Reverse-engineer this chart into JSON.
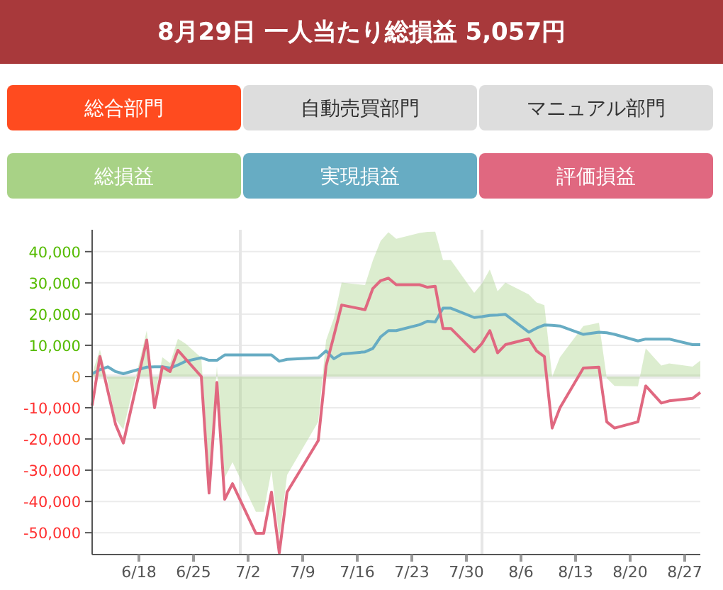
{
  "chart_data": {
    "type": "line",
    "title": "8月29日 一人当たり総損益 5,057円",
    "annotations": [
      "総合部門",
      "自動売買部門",
      "マニュアル部門"
    ],
    "legend": "top",
    "grid": "y",
    "line_style": "solid",
    "marker": "none",
    "x": [
      "--06-12",
      "--06-13",
      "--06-14",
      "--06-15",
      "--06-16",
      "--06-19",
      "--06-20",
      "--06-21",
      "--06-22",
      "--06-23",
      "--06-24",
      "--06-26",
      "--06-27",
      "--06-28",
      "--06-29",
      "--06-30",
      "--07-03",
      "--07-04",
      "--07-05",
      "--07-06",
      "--07-07",
      "--07-11",
      "--07-12",
      "--07-13",
      "--07-14",
      "--07-17",
      "--07-18",
      "--07-19",
      "--07-20",
      "--07-21",
      "--07-24",
      "--07-25",
      "--07-26",
      "--07-27",
      "--07-28",
      "--07-31",
      "--08-01",
      "--08-02",
      "--08-03",
      "--08-04",
      "--08-07",
      "--08-08",
      "--08-09",
      "--08-10",
      "--08-11",
      "--08-14",
      "--08-16",
      "--08-17",
      "--08-18",
      "--08-21",
      "--08-22",
      "--08-24",
      "--08-25",
      "--08-28",
      "--08-29"
    ],
    "series": [
      {
        "name": "総損益",
        "type": "area",
        "color": "#a8d286",
        "values": [
          1000,
          8600,
          -1400,
          -13700,
          -17000,
          14700,
          -6900,
          6200,
          4300,
          12100,
          10500,
          6000,
          -32100,
          3300,
          -32400,
          -27400,
          -43300,
          -43300,
          -30100,
          -51600,
          -31500,
          -14500,
          11600,
          18700,
          30100,
          29300,
          37200,
          43400,
          46200,
          44100,
          46000,
          46300,
          46400,
          37300,
          37300,
          26800,
          29800,
          34300,
          27300,
          30100,
          26300,
          23700,
          22900,
          -100,
          6200,
          16200,
          17200,
          -500,
          -3000,
          -3100,
          9000,
          3500,
          4200,
          3200,
          5100
        ]
      },
      {
        "name": "実現損益",
        "type": "line",
        "color": "#67acc3",
        "values": [
          900,
          2200,
          3100,
          1600,
          900,
          3000,
          3100,
          3100,
          2700,
          3700,
          4900,
          6000,
          5200,
          5200,
          6900,
          6900,
          6900,
          6900,
          6900,
          4900,
          5500,
          6000,
          8200,
          5700,
          7200,
          7900,
          9000,
          12700,
          14700,
          14700,
          16600,
          17700,
          17500,
          21900,
          21900,
          18900,
          19200,
          19600,
          19700,
          19900,
          14200,
          15500,
          16500,
          16400,
          16200,
          13500,
          14200,
          14000,
          13500,
          11400,
          12000,
          12000,
          12000,
          10200,
          10200
        ]
      },
      {
        "name": "評価損益",
        "type": "line",
        "color": "#e06880",
        "values": [
          -9300,
          6400,
          -4500,
          -15300,
          -21300,
          11700,
          -10000,
          3100,
          1600,
          8400,
          5600,
          0,
          -37300,
          -1900,
          -39300,
          -34300,
          -50200,
          -50200,
          -37000,
          -56500,
          -37000,
          -20500,
          3400,
          13000,
          22900,
          21400,
          28200,
          30700,
          31500,
          29400,
          29400,
          28600,
          28900,
          15400,
          15400,
          7900,
          10600,
          14700,
          7600,
          10200,
          12100,
          8200,
          6400,
          -16500,
          -10000,
          2700,
          3000,
          -14500,
          -16500,
          -14500,
          -3000,
          -8500,
          -7800,
          -7000,
          -5100
        ]
      }
    ],
    "xlim": [
      "--06-12",
      "--08-29"
    ],
    "xticks": [
      {
        "value": "--06-18",
        "label": "6/18"
      },
      {
        "value": "--06-25",
        "label": "6/25"
      },
      {
        "value": "--07-02",
        "label": "7/2"
      },
      {
        "value": "--07-09",
        "label": "7/9"
      },
      {
        "value": "--07-16",
        "label": "7/16"
      },
      {
        "value": "--07-23",
        "label": "7/23"
      },
      {
        "value": "--07-30",
        "label": "7/30"
      },
      {
        "value": "--08-06",
        "label": "8/6"
      },
      {
        "value": "--08-13",
        "label": "8/13"
      },
      {
        "value": "--08-20",
        "label": "8/20"
      },
      {
        "value": "--08-27",
        "label": "8/27"
      }
    ],
    "ylim": [
      -57000,
      47000
    ],
    "yticks": [
      {
        "value": -50000,
        "label": "-50,000"
      },
      {
        "value": -40000,
        "label": "-40,000"
      },
      {
        "value": -30000,
        "label": "-30,000"
      },
      {
        "value": -20000,
        "label": "-20,000"
      },
      {
        "value": -10000,
        "label": "-10,000"
      },
      0,
      {
        "value": 10000,
        "label": "10,000"
      },
      {
        "value": 20000,
        "label": "20,000"
      },
      {
        "value": 30000,
        "label": "30,000"
      },
      {
        "value": 40000,
        "label": "40,000"
      }
    ],
    "ref_lines": [
      {
        "axis": "x",
        "value": "--07-01",
        "color": "#e6e6e6"
      },
      {
        "axis": "x",
        "value": "--08-01",
        "color": "#e6e6e6"
      }
    ]
  }
}
